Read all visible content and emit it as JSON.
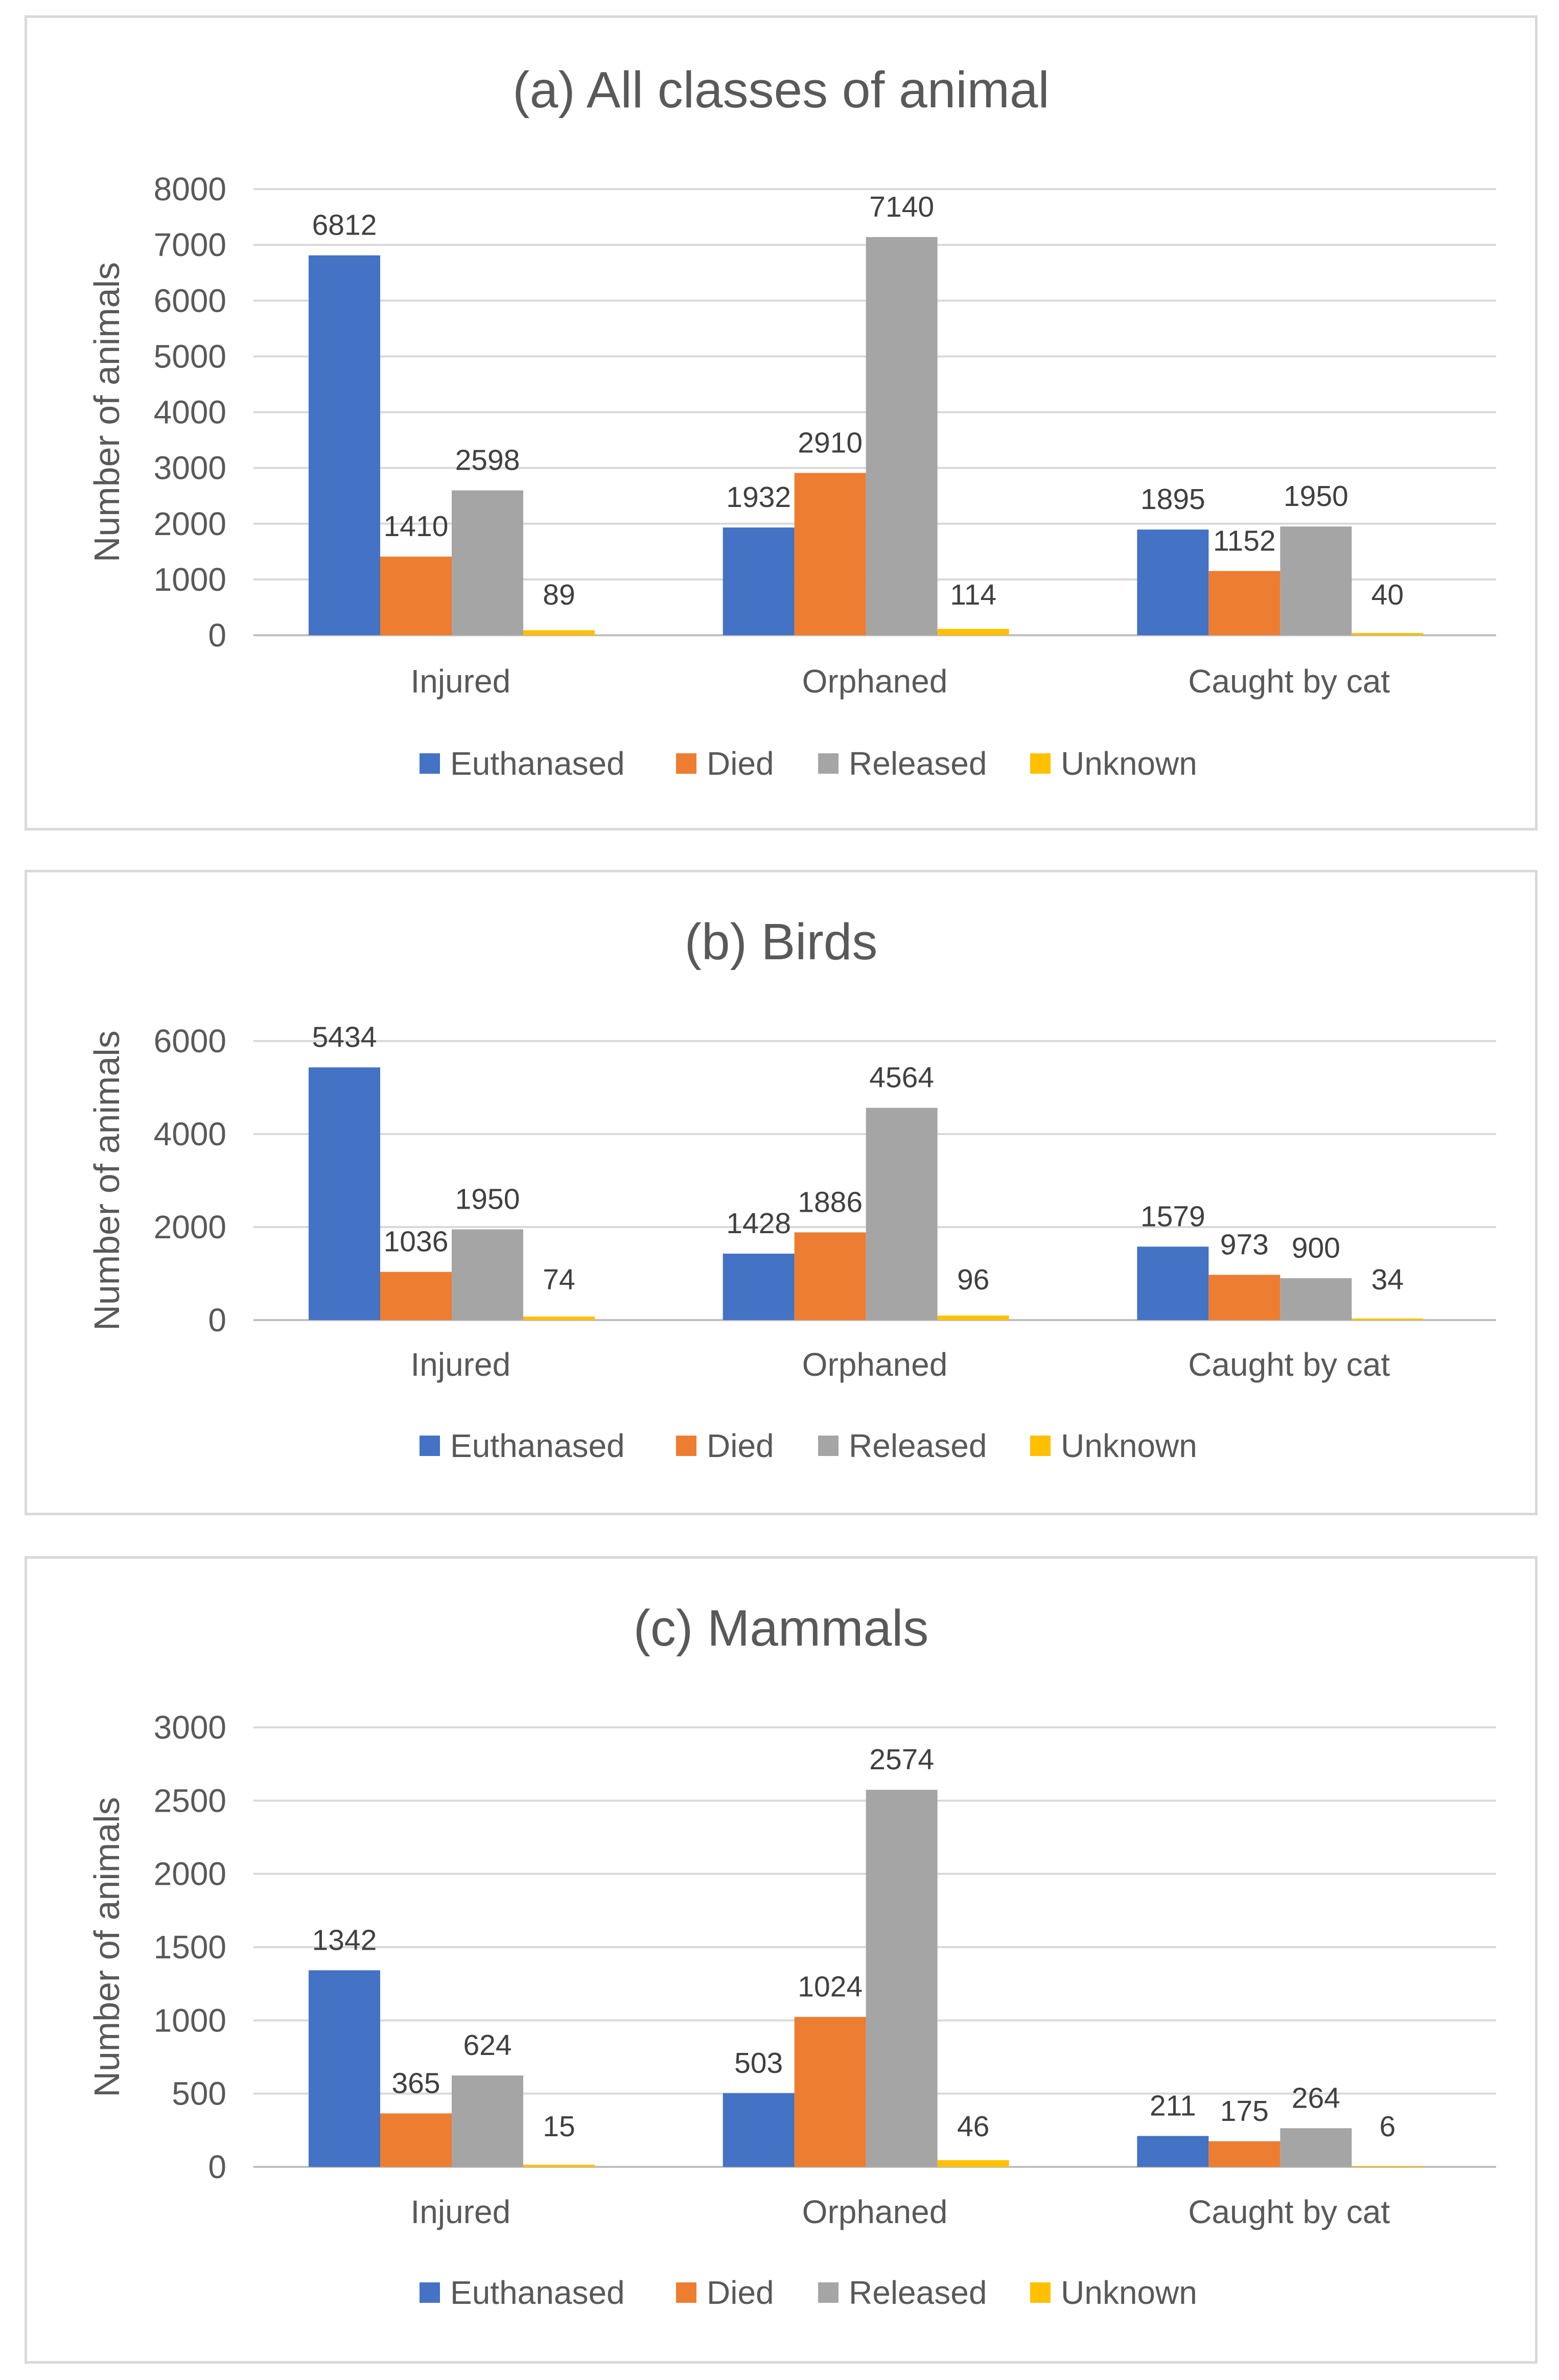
{
  "chart_data": [
    {
      "type": "bar",
      "title": "(a) All classes of animal",
      "ylabel": "Number of animals",
      "xlabel": "",
      "categories": [
        "Injured",
        "Orphaned",
        "Caught by cat"
      ],
      "ylim": [
        0,
        8000
      ],
      "yticks": [
        "0",
        "1000",
        "2000",
        "3000",
        "4000",
        "5000",
        "6000",
        "7000",
        "8000"
      ],
      "grid": true,
      "legend": "bottom",
      "series": [
        {
          "name": "Euthanased",
          "color": "#4472c4",
          "values": [
            6812,
            1932,
            1895
          ]
        },
        {
          "name": "Died",
          "color": "#ed7d31",
          "values": [
            1410,
            2910,
            1152
          ]
        },
        {
          "name": "Released",
          "color": "#a5a5a5",
          "values": [
            2598,
            7140,
            1950
          ]
        },
        {
          "name": "Unknown",
          "color": "#ffc000",
          "values": [
            89,
            114,
            40
          ]
        }
      ]
    },
    {
      "type": "bar",
      "title": "(b) Birds",
      "ylabel": "Number of animals",
      "xlabel": "",
      "categories": [
        "Injured",
        "Orphaned",
        "Caught by cat"
      ],
      "ylim": [
        0,
        6000
      ],
      "yticks": [
        "0",
        "2000",
        "4000",
        "6000"
      ],
      "grid": true,
      "legend": "bottom",
      "series": [
        {
          "name": "Euthanased",
          "color": "#4472c4",
          "values": [
            5434,
            1428,
            1579
          ]
        },
        {
          "name": "Died",
          "color": "#ed7d31",
          "values": [
            1036,
            1886,
            973
          ]
        },
        {
          "name": "Released",
          "color": "#a5a5a5",
          "values": [
            1950,
            4564,
            900
          ]
        },
        {
          "name": "Unknown",
          "color": "#ffc000",
          "values": [
            74,
            96,
            34
          ]
        }
      ]
    },
    {
      "type": "bar",
      "title": "(c) Mammals",
      "ylabel": "Number of animals",
      "xlabel": "",
      "categories": [
        "Injured",
        "Orphaned",
        "Caught by cat"
      ],
      "ylim": [
        0,
        3000
      ],
      "yticks": [
        "0",
        "500",
        "1000",
        "1500",
        "2000",
        "2500",
        "3000"
      ],
      "grid": true,
      "legend": "bottom",
      "series": [
        {
          "name": "Euthanased",
          "color": "#4472c4",
          "values": [
            1342,
            503,
            211
          ]
        },
        {
          "name": "Died",
          "color": "#ed7d31",
          "values": [
            365,
            1024,
            175
          ]
        },
        {
          "name": "Released",
          "color": "#a5a5a5",
          "values": [
            624,
            2574,
            264
          ]
        },
        {
          "name": "Unknown",
          "color": "#ffc000",
          "values": [
            15,
            46,
            6
          ]
        }
      ]
    }
  ]
}
